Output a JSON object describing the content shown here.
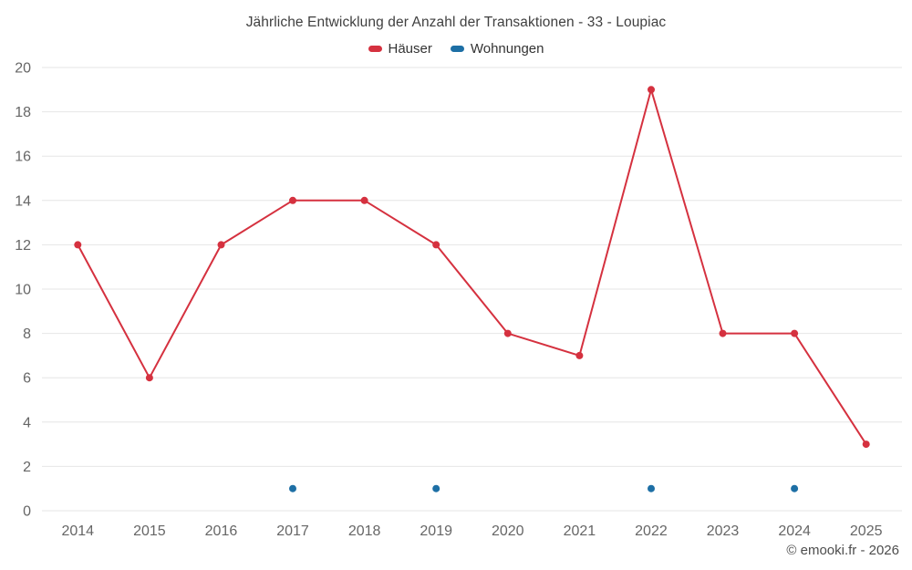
{
  "chart_data": {
    "type": "line",
    "title": "Jährliche Entwicklung der Anzahl der Transaktionen - 33 - Loupiac",
    "categories": [
      "2014",
      "2015",
      "2016",
      "2017",
      "2018",
      "2019",
      "2020",
      "2021",
      "2022",
      "2023",
      "2024",
      "2025"
    ],
    "series": [
      {
        "name": "Häuser",
        "color": "#d5313f",
        "values": [
          12,
          6,
          12,
          14,
          14,
          12,
          8,
          7,
          19,
          8,
          8,
          3
        ]
      },
      {
        "name": "Wohnungen",
        "color": "#1d6fa5",
        "values": [
          null,
          null,
          null,
          1,
          null,
          1,
          null,
          null,
          1,
          null,
          1,
          null
        ]
      }
    ],
    "ylim": [
      0,
      20
    ],
    "ytick_step": 2,
    "grid": true,
    "legend_position": "top",
    "xlabel": "",
    "ylabel": ""
  },
  "footer": {
    "copyright": "© emooki.fr - 2026"
  }
}
